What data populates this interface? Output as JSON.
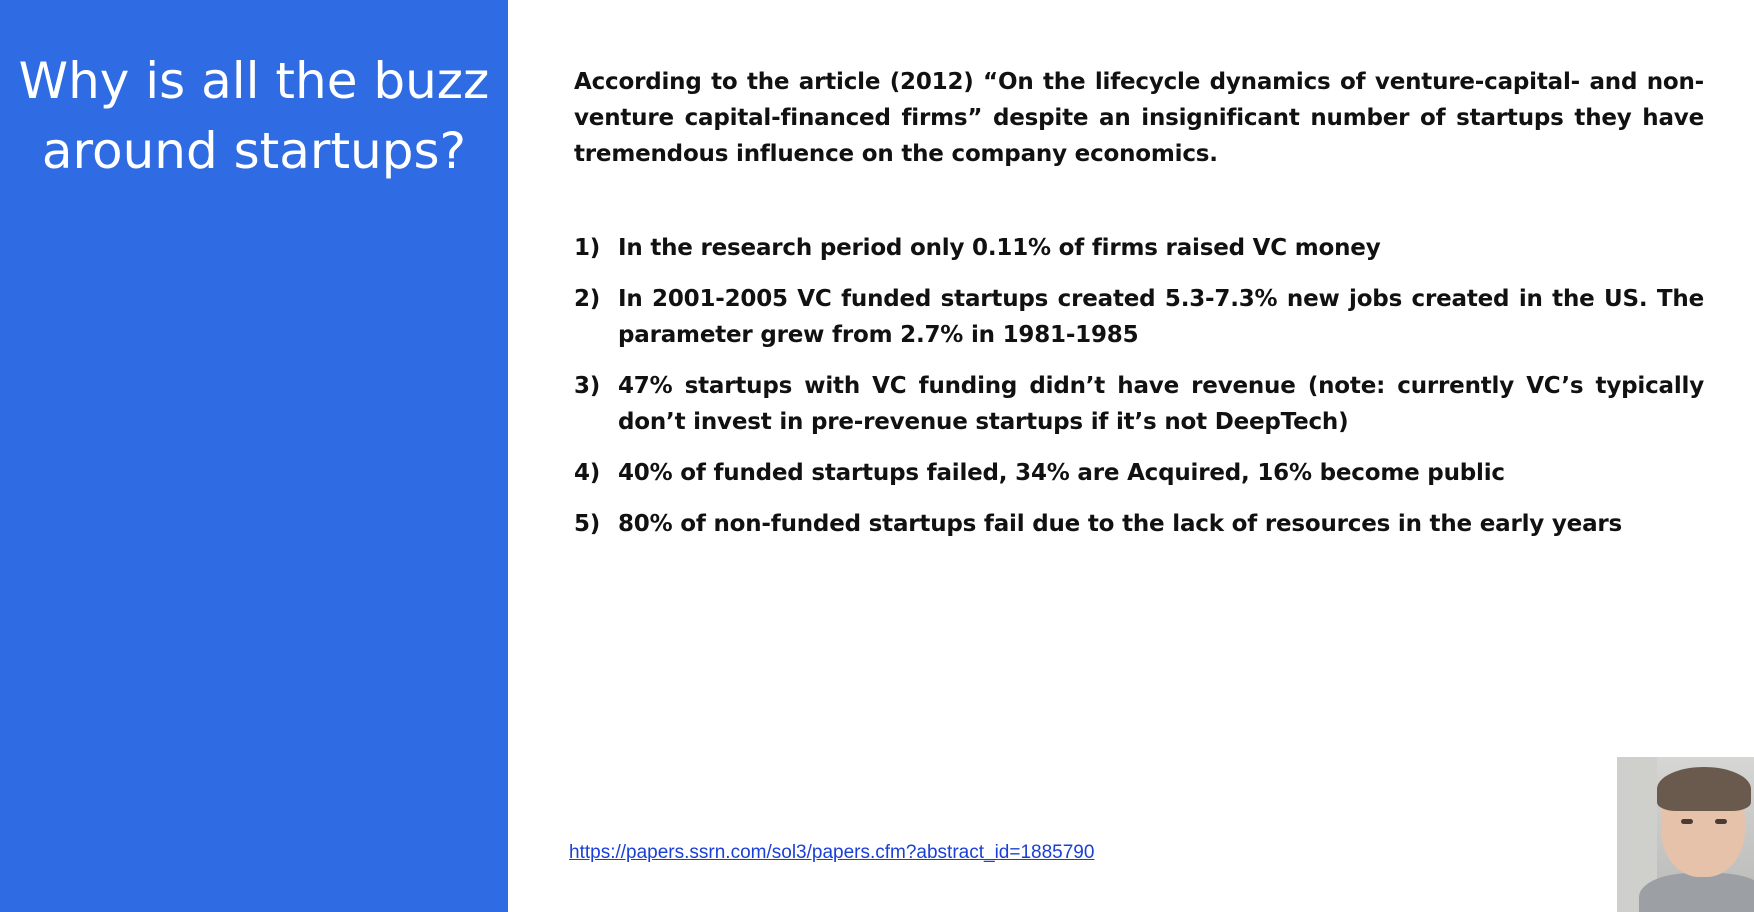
{
  "slide": {
    "title": "Why is all the buzz around startups?",
    "intro": "According to the article (2012) “On the lifecycle dynamics of venture-capital- and non-venture capital-financed firms” despite an insignificant number of startups they have tremendous influence on the company economics.",
    "points": [
      {
        "num": "1)",
        "text": "In the research period only 0.11% of firms raised VC money"
      },
      {
        "num": "2)",
        "text": "In 2001-2005 VC funded startups created 5.3-7.3% new jobs created in the US. The parameter grew from 2.7% in 1981-1985"
      },
      {
        "num": "3)",
        "text": "47% startups with VC funding didn’t have revenue (note: currently VC’s typically don’t invest in pre-revenue startups if it’s not DeepTech)"
      },
      {
        "num": "4)",
        "text": "40% of funded startups failed, 34% are Acquired, 16% become public"
      },
      {
        "num": "5)",
        "text": "80% of non-funded startups fail due to the lack of resources in the early years"
      }
    ],
    "source_link": "https://papers.ssrn.com/sol3/papers.cfm?abstract_id=1885790"
  },
  "colors": {
    "left_panel": "#2f6be3",
    "title_text": "#ffffff",
    "body_text": "#111111",
    "link": "#1a3fd6"
  },
  "icons": {
    "webcam": "webcam-thumbnail"
  }
}
